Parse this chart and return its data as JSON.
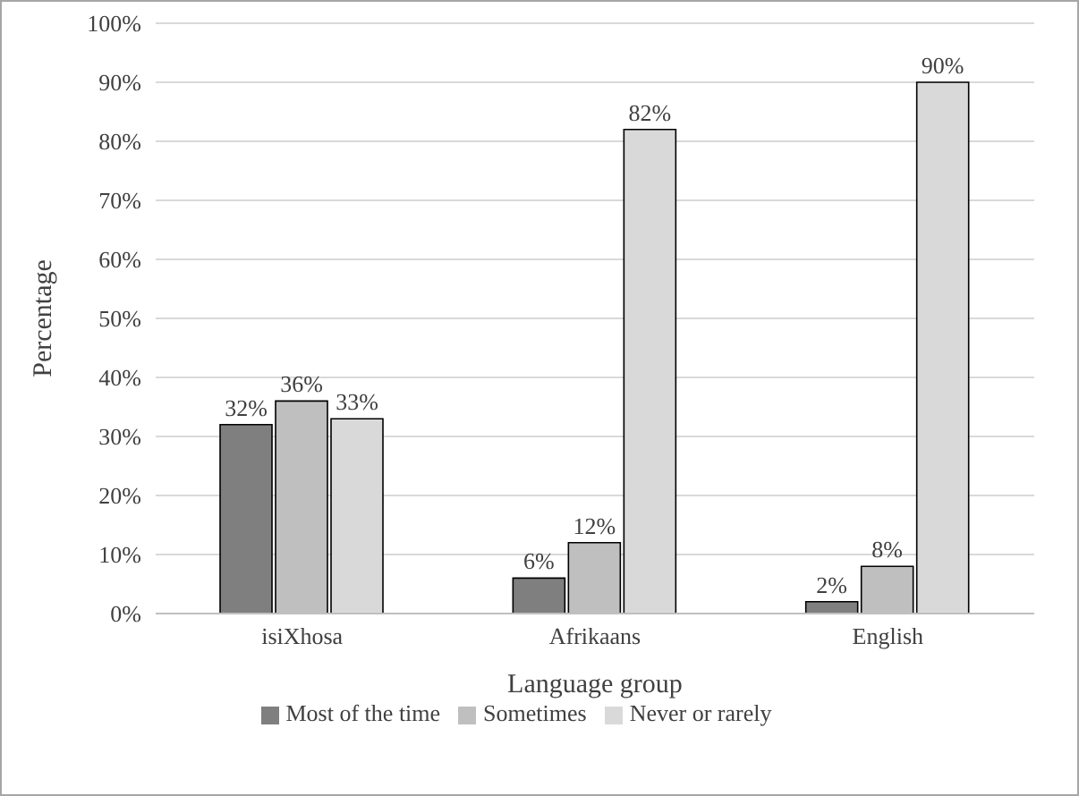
{
  "chart_data": {
    "type": "bar",
    "xlabel": "Language group",
    "ylabel": "Percentage",
    "categories": [
      "isiXhosa",
      "Afrikaans",
      "English"
    ],
    "series": [
      {
        "name": "Most of the time",
        "color": "#7f7f7f",
        "values": [
          32,
          6,
          2
        ],
        "value_labels": [
          "32%",
          "6%",
          "2%"
        ]
      },
      {
        "name": "Sometimes",
        "color": "#bfbfbf",
        "values": [
          36,
          12,
          8
        ],
        "value_labels": [
          "36%",
          "12%",
          "8%"
        ]
      },
      {
        "name": "Never or rarely",
        "color": "#d9d9d9",
        "values": [
          33,
          82,
          90
        ],
        "value_labels": [
          "33%",
          "82%",
          "90%"
        ]
      }
    ],
    "ylim": [
      0,
      100
    ],
    "yticks": [
      {
        "value": 0,
        "label": "0%"
      },
      {
        "value": 10,
        "label": "10%"
      },
      {
        "value": 20,
        "label": "20%"
      },
      {
        "value": 30,
        "label": "30%"
      },
      {
        "value": 40,
        "label": "40%"
      },
      {
        "value": 50,
        "label": "50%"
      },
      {
        "value": 60,
        "label": "60%"
      },
      {
        "value": 70,
        "label": "70%"
      },
      {
        "value": 80,
        "label": "80%"
      },
      {
        "value": 90,
        "label": "90%"
      },
      {
        "value": 100,
        "label": "100%"
      }
    ],
    "grid": "y",
    "legend": "bottom"
  }
}
